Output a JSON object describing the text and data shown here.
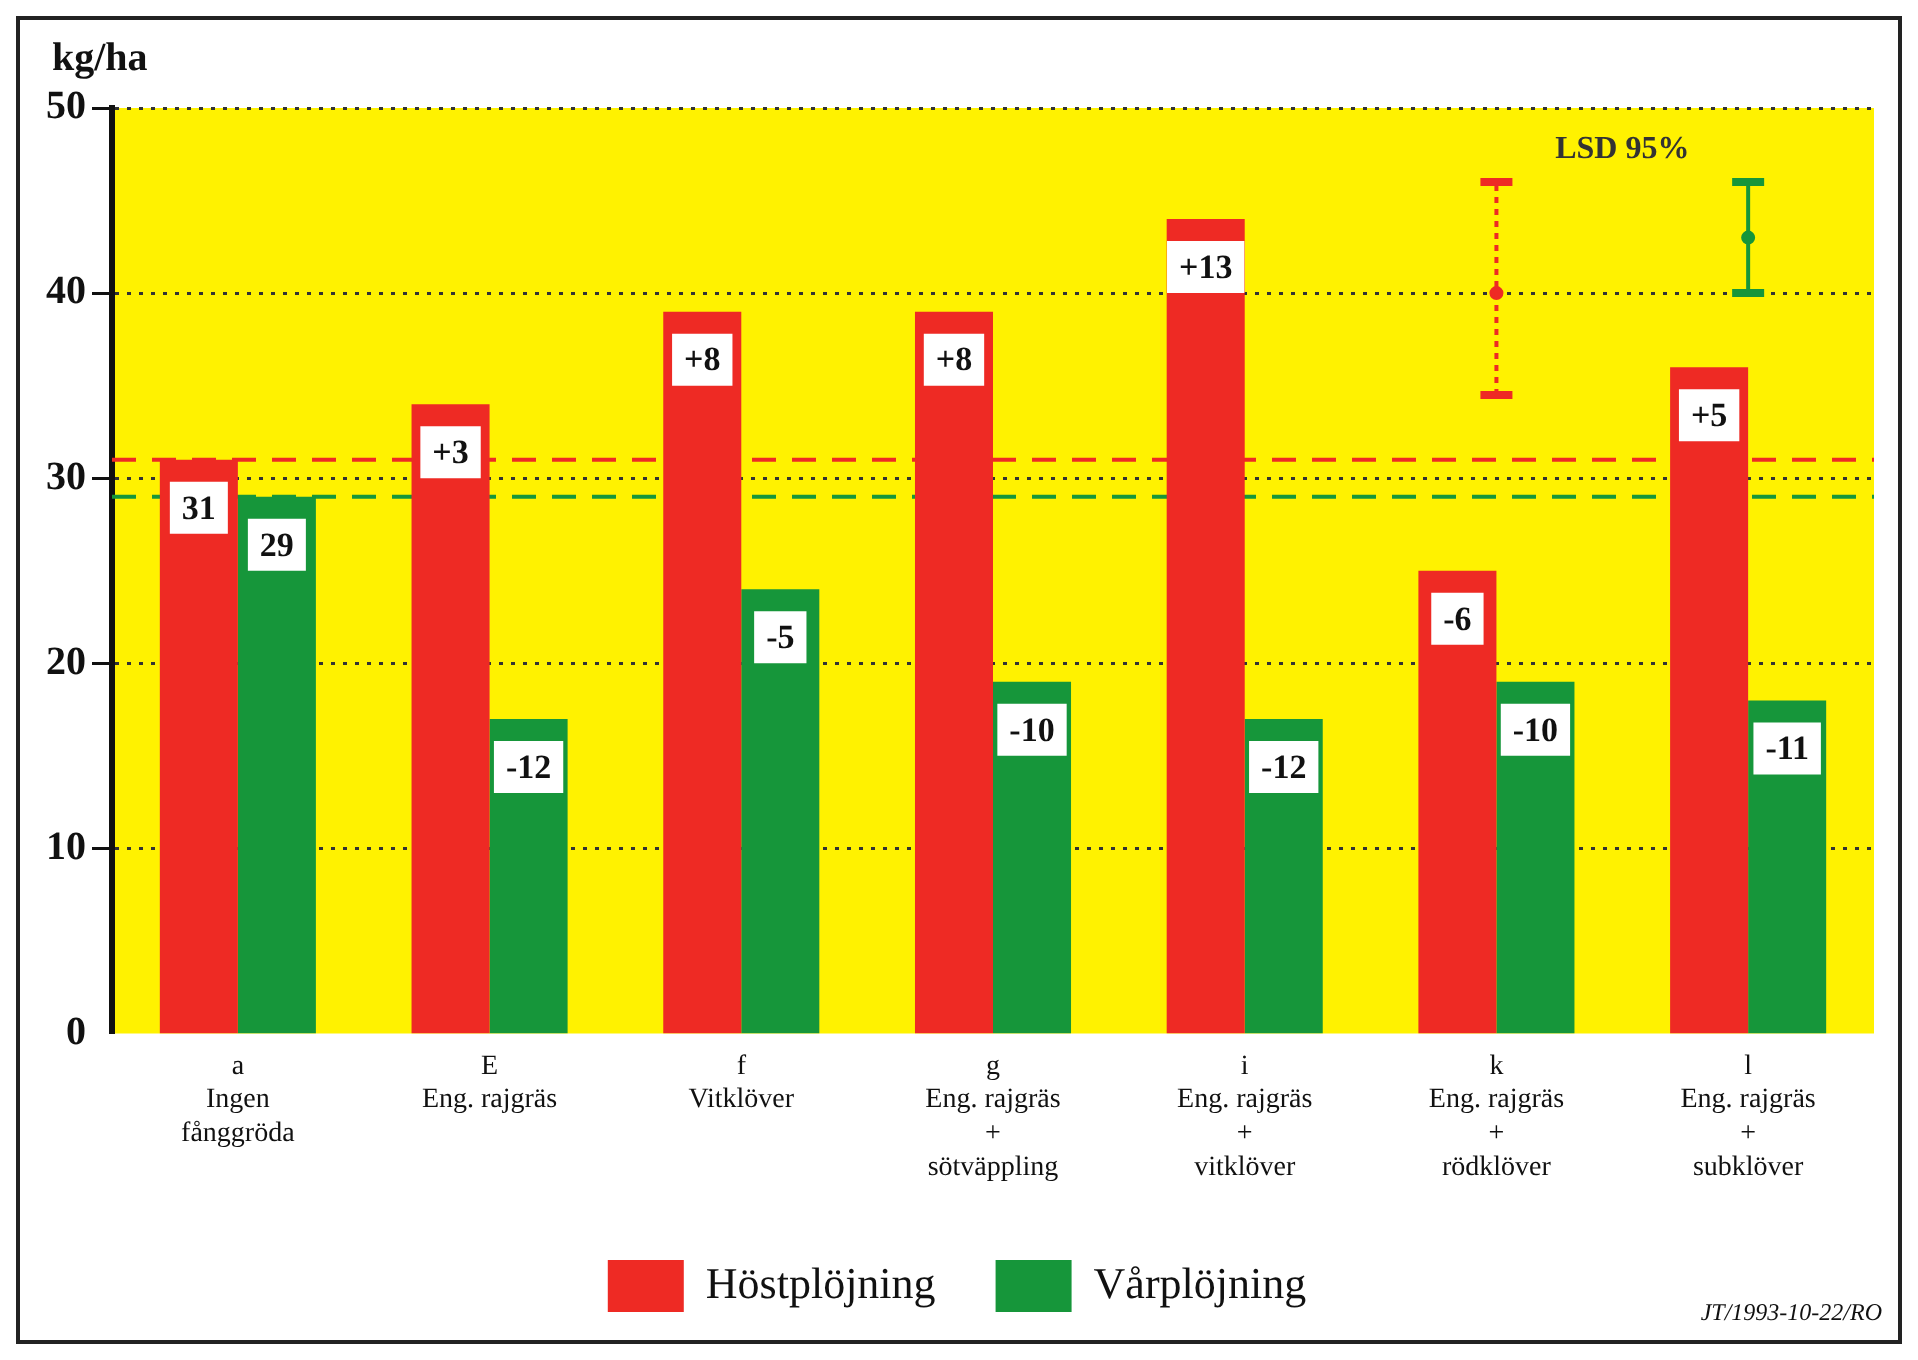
{
  "chart_data": {
    "type": "bar",
    "ylabel": "kg/ha",
    "categories": [
      "a\nIngen\nfånggröda",
      "E\nEng. rajgräs",
      "f\nVitklöver",
      "g\nEng. rajgräs\n+\nsötväppling",
      "i\nEng. rajgräs\n+\nvitklöver",
      "k\nEng. rajgräs\n+\nrödklöver",
      "l\nEng. rajgräs\n+\nsubklöver"
    ],
    "series": [
      {
        "name": "Höstplöjning",
        "color": "#ee2a24",
        "values": [
          31,
          34,
          39,
          39,
          44,
          25,
          36
        ]
      },
      {
        "name": "Vårplöjning",
        "color": "#16963a",
        "values": [
          29,
          17,
          24,
          19,
          17,
          19,
          18
        ]
      },
      {
        "type": "scatter",
        "color": "#ee2a24",
        "x": [
          "k\nEng. rajgräs\n+\nrödklöver"
        ],
        "values": [
          40
        ],
        "errors": [
          [
            34.5,
            46
          ]
        ],
        "line_style": "dotted",
        "marker": "circle"
      },
      {
        "type": "scatter",
        "color": "#16963a",
        "x": [
          "l\nEng. rajgräs\n+\nsubklöver"
        ],
        "values": [
          43
        ],
        "errors": [
          [
            40,
            46
          ]
        ],
        "line_style": "solid",
        "marker": "circle"
      }
    ],
    "ylim": [
      0,
      50
    ],
    "yticks": [
      0,
      10,
      20,
      30,
      40,
      50
    ],
    "grid": "y",
    "ref_lines": [
      {
        "axis": "y",
        "value": 31,
        "color": "#ee2a24",
        "line_style": "dashed"
      },
      {
        "axis": "y",
        "value": 29,
        "color": "#16963a",
        "line_style": "dashed"
      }
    ],
    "annotations": [
      "LSD 95%",
      {
        "text": "31",
        "x": "a\nIngen\nfånggröda",
        "y": 31
      },
      {
        "text": "29",
        "x": "a\nIngen\nfånggröda",
        "y": 29
      },
      {
        "text": "+3",
        "x": "E\nEng. rajgräs",
        "y": 34
      },
      {
        "text": "-12",
        "x": "E\nEng. rajgräs",
        "y": 17
      },
      {
        "text": "+8",
        "x": "f\nVitklöver",
        "y": 39
      },
      {
        "text": "-5",
        "x": "f\nVitklöver",
        "y": 24
      },
      {
        "text": "+8",
        "x": "g\nEng. rajgräs\n+\nsötväppling",
        "y": 39
      },
      {
        "text": "-10",
        "x": "g\nEng. rajgräs\n+\nsötväppling",
        "y": 19
      },
      {
        "text": "+13",
        "x": "i\nEng. rajgräs\n+\nvitklöver",
        "y": 44
      },
      {
        "text": "-12",
        "x": "i\nEng. rajgräs\n+\nvitklöver",
        "y": 17
      },
      {
        "text": "-6",
        "x": "k\nEng. rajgräs\n+\nrödklöver",
        "y": 25
      },
      {
        "text": "-10",
        "x": "k\nEng. rajgräs\n+\nrödklöver",
        "y": 19
      },
      {
        "text": "+5",
        "x": "l\nEng. rajgräs\n+\nsubklöver",
        "y": 36
      },
      {
        "text": "-11",
        "x": "l\nEng. rajgräs\n+\nsubklöver",
        "y": 18
      },
      "JT/1993-10-22/RO"
    ],
    "legend": "bottom"
  }
}
